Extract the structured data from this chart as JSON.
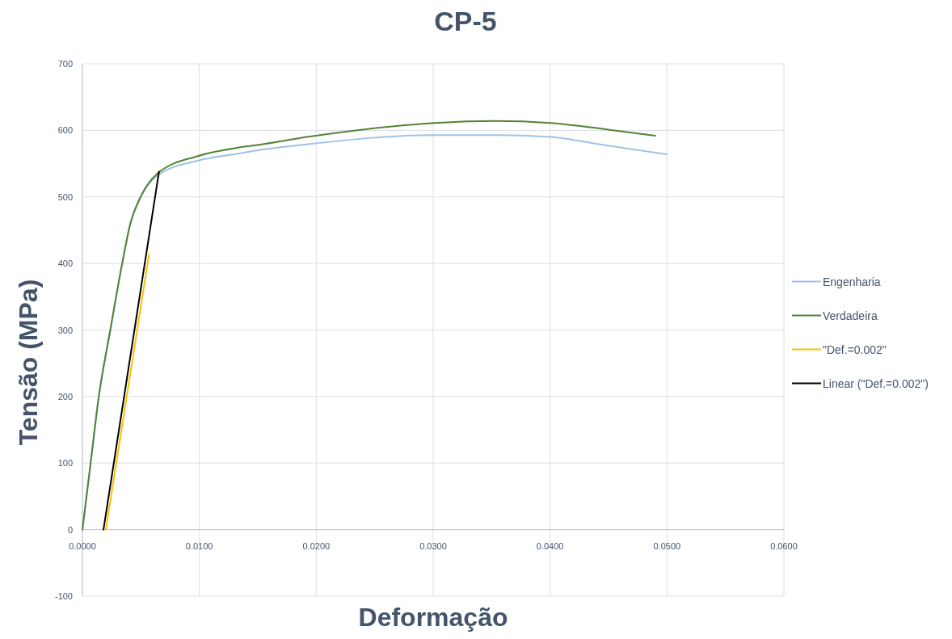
{
  "chart_data": {
    "type": "line",
    "title": "CP-5",
    "xlabel": "Deformação",
    "ylabel": "Tensão (MPa)",
    "xlim": [
      0,
      0.06
    ],
    "xticks": [
      {
        "value": 0,
        "label": "0.0000"
      },
      {
        "value": 0.01,
        "label": "0.0100"
      },
      {
        "value": 0.02,
        "label": "0.0200"
      },
      {
        "value": 0.03,
        "label": "0.0300"
      },
      {
        "value": 0.04,
        "label": "0.0400"
      },
      {
        "value": 0.05,
        "label": "0.0500"
      },
      {
        "value": 0.06,
        "label": "0.0600"
      }
    ],
    "ylim": [
      -100,
      700
    ],
    "yticks": [
      -100,
      0,
      100,
      200,
      300,
      400,
      500,
      600,
      700
    ],
    "grid": true,
    "legend": "right",
    "marker": "none",
    "line_style": "solid",
    "series": [
      {
        "name": "Engenharia",
        "color": "#9dc3e6",
        "x": [
          0,
          0.0007,
          0.0014,
          0.0024,
          0.0034,
          0.0041,
          0.005,
          0.0064,
          0.01,
          0.0133,
          0.015,
          0.0192,
          0.0301,
          0.0353,
          0.04,
          0.0446,
          0.05
        ],
        "values": [
          0,
          100,
          200,
          300,
          400,
          460,
          500,
          532,
          555,
          565,
          570,
          579,
          593,
          593,
          590,
          578,
          564
        ]
      },
      {
        "name": "Verdadeira",
        "color": "#548235",
        "x": [
          0,
          0.0007,
          0.0014,
          0.0024,
          0.0034,
          0.0041,
          0.005,
          0.0064,
          0.01,
          0.0133,
          0.015,
          0.0192,
          0.0301,
          0.0353,
          0.04,
          0.0446,
          0.049
        ],
        "values": [
          0,
          100,
          200,
          302,
          400,
          460,
          501,
          535,
          562,
          574,
          578,
          590,
          611,
          614,
          611,
          602,
          592
        ]
      },
      {
        "name": "\"Def.=0.002\"",
        "color": "#ffc000",
        "x": [
          0.002,
          0.0057
        ],
        "values": [
          0,
          414
        ]
      },
      {
        "name": "Linear (\"Def.=0.002\")",
        "color": "#000000",
        "x": [
          0.0018,
          0.00655
        ],
        "values": [
          0,
          538
        ]
      }
    ]
  }
}
